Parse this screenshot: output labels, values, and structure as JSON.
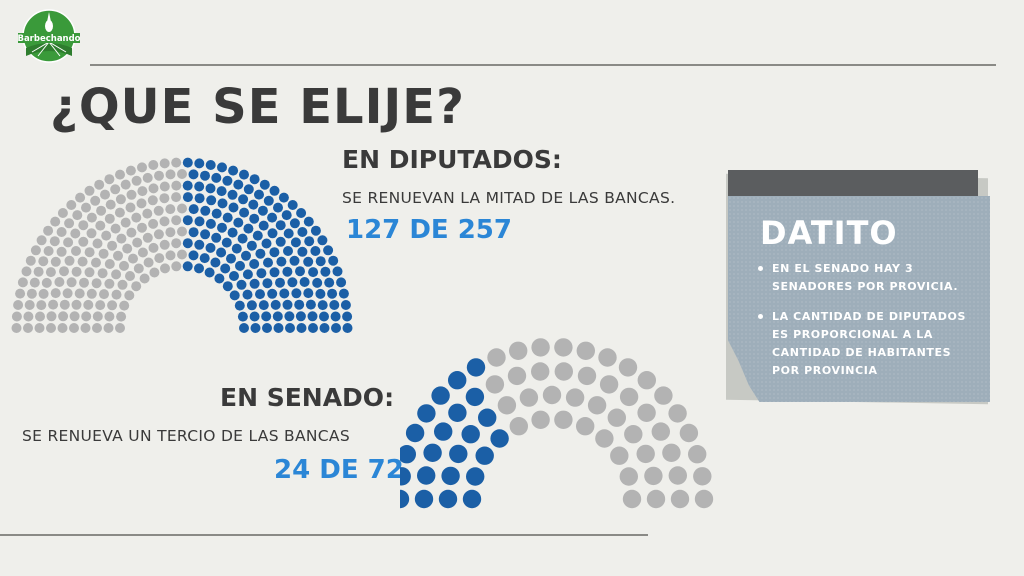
{
  "brand": {
    "logo_text": "Barbechando"
  },
  "title": "¿QUE SE ELIJE?",
  "diputados": {
    "heading": "EN DIPUTADOS:",
    "description": "SE RENUEVAN LA MITAD DE LAS BANCAS.",
    "count": "127 DE 257"
  },
  "senado": {
    "heading": "EN SENADO:",
    "description": "SE RENUEVA UN TERCIO DE LAS BANCAS",
    "count": "24 DE 72"
  },
  "datito": {
    "title": "DATITO",
    "items": [
      "EN EL SENADO HAY 3 SENADORES POR PROVICIA.",
      "LA CANTIDAD DE DIPUTADOS ES PROPORCIONAL A LA CANTIDAD DE HABITANTES POR PROVINCIA"
    ]
  },
  "colors": {
    "renewed_seat": "#1b5fa6",
    "other_seat": "#b3b3b3",
    "count_text": "#2b86d6",
    "logo_green": "#3a9a3a"
  }
}
